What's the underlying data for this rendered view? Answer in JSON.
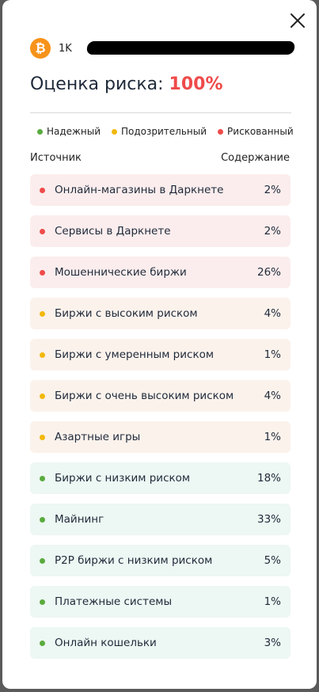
{
  "header": {
    "address_prefix": "1K",
    "risk_label": "Оценка риска:",
    "risk_value": "100%"
  },
  "legend": [
    {
      "label": "Надежный",
      "color": "#5aab3e"
    },
    {
      "label": "Подозрительный",
      "color": "#f2b90c"
    },
    {
      "label": "Рискованный",
      "color": "#ef4b4b"
    }
  ],
  "columns": {
    "source": "Источник",
    "content": "Содержание"
  },
  "rows": [
    {
      "label": "Онлайн-магазины в Даркнете",
      "value": "2%",
      "level": "risky"
    },
    {
      "label": "Сервисы в Даркнете",
      "value": "2%",
      "level": "risky"
    },
    {
      "label": "Мошеннические биржи",
      "value": "26%",
      "level": "risky"
    },
    {
      "label": "Биржи с высоким риском",
      "value": "4%",
      "level": "suspicious"
    },
    {
      "label": "Биржи с умеренным риском",
      "value": "1%",
      "level": "suspicious"
    },
    {
      "label": "Биржи с очень высоким риском",
      "value": "4%",
      "level": "suspicious"
    },
    {
      "label": "Азартные игры",
      "value": "1%",
      "level": "suspicious"
    },
    {
      "label": "Биржи с низким риском",
      "value": "18%",
      "level": "reliable"
    },
    {
      "label": "Майнинг",
      "value": "33%",
      "level": "reliable"
    },
    {
      "label": "P2P биржи с низким риском",
      "value": "5%",
      "level": "reliable"
    },
    {
      "label": "Платежные системы",
      "value": "1%",
      "level": "reliable"
    },
    {
      "label": "Онлайн кошельки",
      "value": "3%",
      "level": "reliable"
    }
  ],
  "colors": {
    "risky_dot": "#ef4b4b",
    "risky_bg": "#fbeded",
    "suspicious_dot": "#f2b90c",
    "suspicious_bg": "#fbf2ec",
    "reliable_dot": "#5aab3e",
    "reliable_bg": "#edf7f3"
  },
  "icons": {
    "close": "close-icon",
    "coin": "bitcoin-icon"
  }
}
